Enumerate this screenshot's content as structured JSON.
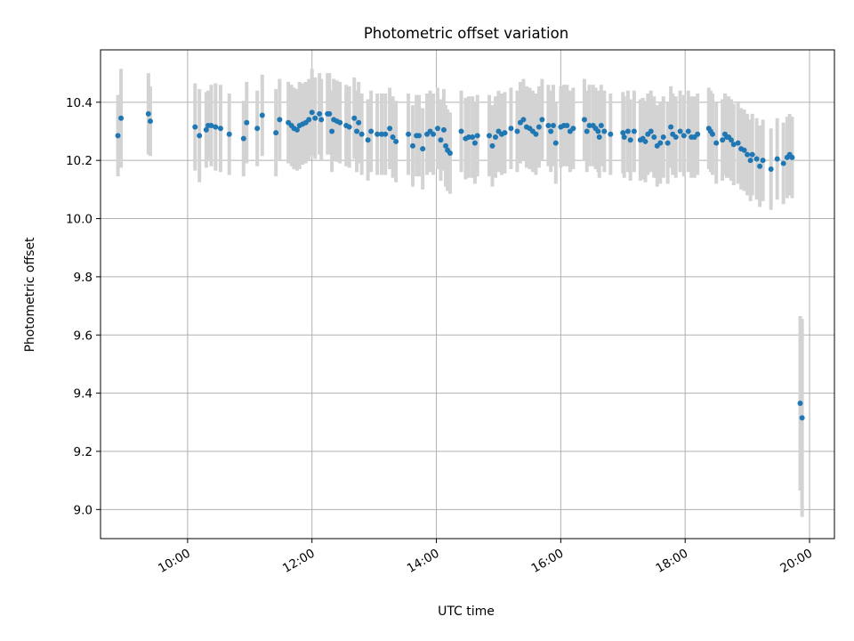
{
  "chart_data": {
    "type": "scatter",
    "title": "Photometric offset variation",
    "xlabel": "UTC time",
    "ylabel": "Photometric offset",
    "x_unit": "hours UTC",
    "xlim": [
      8.6,
      20.4
    ],
    "ylim": [
      8.9,
      10.58
    ],
    "x_ticks": [
      {
        "value": 10,
        "label": "10:00"
      },
      {
        "value": 12,
        "label": "12:00"
      },
      {
        "value": 14,
        "label": "14:00"
      },
      {
        "value": 16,
        "label": "16:00"
      },
      {
        "value": 18,
        "label": "18:00"
      },
      {
        "value": 20,
        "label": "20:00"
      }
    ],
    "y_ticks": [
      {
        "value": 9.0,
        "label": "9.0"
      },
      {
        "value": 9.2,
        "label": "9.2"
      },
      {
        "value": 9.4,
        "label": "9.4"
      },
      {
        "value": 9.6,
        "label": "9.6"
      },
      {
        "value": 9.8,
        "label": "9.8"
      },
      {
        "value": 10.0,
        "label": "10.0"
      },
      {
        "value": 10.2,
        "label": "10.2"
      },
      {
        "value": 10.4,
        "label": "10.4"
      }
    ],
    "grid": true,
    "colors": {
      "point": "#1f77b4",
      "errorbar": "#d3d3d3",
      "grid": "#b0b0b0"
    },
    "series": [
      {
        "points": [
          [
            8.88,
            10.285,
            0.14
          ],
          [
            8.93,
            10.345,
            0.17
          ],
          [
            9.37,
            10.36,
            0.14
          ],
          [
            9.4,
            10.335,
            0.12
          ],
          [
            10.12,
            10.315,
            0.15
          ],
          [
            10.19,
            10.285,
            0.16
          ],
          [
            10.3,
            10.305,
            0.13
          ],
          [
            10.33,
            10.32,
            0.12
          ],
          [
            10.38,
            10.32,
            0.14
          ],
          [
            10.45,
            10.315,
            0.15
          ],
          [
            10.53,
            10.31,
            0.15
          ],
          [
            10.67,
            10.29,
            0.14
          ],
          [
            10.9,
            10.275,
            0.13
          ],
          [
            10.95,
            10.33,
            0.14
          ],
          [
            11.12,
            10.31,
            0.13
          ],
          [
            11.2,
            10.355,
            0.14
          ],
          [
            11.42,
            10.295,
            0.15
          ],
          [
            11.48,
            10.34,
            0.14
          ],
          [
            11.62,
            10.33,
            0.14
          ],
          [
            11.67,
            10.32,
            0.14
          ],
          [
            11.71,
            10.31,
            0.14
          ],
          [
            11.76,
            10.305,
            0.14
          ],
          [
            11.8,
            10.32,
            0.15
          ],
          [
            11.85,
            10.325,
            0.14
          ],
          [
            11.9,
            10.33,
            0.14
          ],
          [
            11.95,
            10.34,
            0.14
          ],
          [
            12.0,
            10.365,
            0.15
          ],
          [
            12.05,
            10.345,
            0.14
          ],
          [
            12.12,
            10.36,
            0.14
          ],
          [
            12.15,
            10.34,
            0.14
          ],
          [
            12.25,
            10.36,
            0.14
          ],
          [
            12.28,
            10.36,
            0.14
          ],
          [
            12.32,
            10.3,
            0.14
          ],
          [
            12.35,
            10.34,
            0.14
          ],
          [
            12.4,
            10.335,
            0.14
          ],
          [
            12.45,
            10.33,
            0.14
          ],
          [
            12.55,
            10.32,
            0.14
          ],
          [
            12.6,
            10.315,
            0.14
          ],
          [
            12.68,
            10.345,
            0.14
          ],
          [
            12.72,
            10.3,
            0.14
          ],
          [
            12.75,
            10.33,
            0.14
          ],
          [
            12.8,
            10.29,
            0.14
          ],
          [
            12.9,
            10.27,
            0.14
          ],
          [
            12.95,
            10.3,
            0.14
          ],
          [
            13.05,
            10.29,
            0.14
          ],
          [
            13.12,
            10.29,
            0.14
          ],
          [
            13.18,
            10.29,
            0.14
          ],
          [
            13.25,
            10.31,
            0.14
          ],
          [
            13.3,
            10.28,
            0.14
          ],
          [
            13.35,
            10.265,
            0.14
          ],
          [
            13.55,
            10.29,
            0.14
          ],
          [
            13.62,
            10.25,
            0.14
          ],
          [
            13.68,
            10.285,
            0.14
          ],
          [
            13.72,
            10.285,
            0.14
          ],
          [
            13.78,
            10.24,
            0.14
          ],
          [
            13.85,
            10.29,
            0.14
          ],
          [
            13.9,
            10.3,
            0.14
          ],
          [
            13.95,
            10.29,
            0.14
          ],
          [
            14.02,
            10.31,
            0.14
          ],
          [
            14.07,
            10.27,
            0.14
          ],
          [
            14.12,
            10.305,
            0.14
          ],
          [
            14.15,
            10.25,
            0.14
          ],
          [
            14.18,
            10.235,
            0.14
          ],
          [
            14.22,
            10.225,
            0.14
          ],
          [
            14.4,
            10.3,
            0.14
          ],
          [
            14.47,
            10.275,
            0.14
          ],
          [
            14.52,
            10.28,
            0.14
          ],
          [
            14.58,
            10.28,
            0.14
          ],
          [
            14.62,
            10.26,
            0.14
          ],
          [
            14.66,
            10.285,
            0.14
          ],
          [
            14.85,
            10.285,
            0.14
          ],
          [
            14.9,
            10.25,
            0.14
          ],
          [
            14.95,
            10.28,
            0.14
          ],
          [
            15.0,
            10.3,
            0.14
          ],
          [
            15.05,
            10.29,
            0.14
          ],
          [
            15.1,
            10.295,
            0.14
          ],
          [
            15.2,
            10.31,
            0.14
          ],
          [
            15.3,
            10.3,
            0.14
          ],
          [
            15.35,
            10.33,
            0.14
          ],
          [
            15.4,
            10.34,
            0.14
          ],
          [
            15.45,
            10.315,
            0.14
          ],
          [
            15.5,
            10.31,
            0.14
          ],
          [
            15.55,
            10.3,
            0.14
          ],
          [
            15.6,
            10.29,
            0.14
          ],
          [
            15.65,
            10.315,
            0.14
          ],
          [
            15.7,
            10.34,
            0.14
          ],
          [
            15.8,
            10.32,
            0.14
          ],
          [
            15.84,
            10.3,
            0.14
          ],
          [
            15.88,
            10.32,
            0.14
          ],
          [
            15.92,
            10.26,
            0.14
          ],
          [
            16.0,
            10.315,
            0.14
          ],
          [
            16.05,
            10.32,
            0.14
          ],
          [
            16.1,
            10.32,
            0.14
          ],
          [
            16.15,
            10.3,
            0.14
          ],
          [
            16.2,
            10.31,
            0.14
          ],
          [
            16.38,
            10.34,
            0.14
          ],
          [
            16.42,
            10.3,
            0.14
          ],
          [
            16.46,
            10.32,
            0.14
          ],
          [
            16.52,
            10.32,
            0.14
          ],
          [
            16.56,
            10.31,
            0.14
          ],
          [
            16.6,
            10.3,
            0.14
          ],
          [
            16.62,
            10.28,
            0.14
          ],
          [
            16.65,
            10.32,
            0.14
          ],
          [
            16.7,
            10.3,
            0.14
          ],
          [
            16.8,
            10.29,
            0.14
          ],
          [
            17.0,
            10.295,
            0.14
          ],
          [
            17.02,
            10.28,
            0.14
          ],
          [
            17.08,
            10.3,
            0.14
          ],
          [
            17.12,
            10.27,
            0.14
          ],
          [
            17.18,
            10.3,
            0.14
          ],
          [
            17.28,
            10.27,
            0.14
          ],
          [
            17.32,
            10.275,
            0.14
          ],
          [
            17.36,
            10.265,
            0.14
          ],
          [
            17.4,
            10.29,
            0.14
          ],
          [
            17.45,
            10.3,
            0.14
          ],
          [
            17.5,
            10.28,
            0.14
          ],
          [
            17.55,
            10.25,
            0.14
          ],
          [
            17.6,
            10.26,
            0.14
          ],
          [
            17.65,
            10.28,
            0.14
          ],
          [
            17.72,
            10.26,
            0.14
          ],
          [
            17.77,
            10.315,
            0.14
          ],
          [
            17.8,
            10.29,
            0.14
          ],
          [
            17.85,
            10.28,
            0.14
          ],
          [
            17.92,
            10.3,
            0.14
          ],
          [
            17.98,
            10.285,
            0.14
          ],
          [
            18.05,
            10.3,
            0.14
          ],
          [
            18.1,
            10.28,
            0.14
          ],
          [
            18.15,
            10.28,
            0.14
          ],
          [
            18.2,
            10.29,
            0.14
          ],
          [
            18.38,
            10.31,
            0.14
          ],
          [
            18.41,
            10.3,
            0.14
          ],
          [
            18.44,
            10.29,
            0.14
          ],
          [
            18.5,
            10.26,
            0.14
          ],
          [
            18.6,
            10.27,
            0.14
          ],
          [
            18.64,
            10.29,
            0.14
          ],
          [
            18.67,
            10.28,
            0.14
          ],
          [
            18.7,
            10.28,
            0.14
          ],
          [
            18.74,
            10.27,
            0.14
          ],
          [
            18.78,
            10.255,
            0.14
          ],
          [
            18.85,
            10.26,
            0.14
          ],
          [
            18.9,
            10.24,
            0.14
          ],
          [
            18.95,
            10.235,
            0.14
          ],
          [
            19.0,
            10.22,
            0.14
          ],
          [
            19.05,
            10.2,
            0.14
          ],
          [
            19.08,
            10.22,
            0.14
          ],
          [
            19.15,
            10.205,
            0.14
          ],
          [
            19.2,
            10.18,
            0.14
          ],
          [
            19.25,
            10.2,
            0.14
          ],
          [
            19.38,
            10.17,
            0.14
          ],
          [
            19.48,
            10.205,
            0.14
          ],
          [
            19.58,
            10.19,
            0.14
          ],
          [
            19.64,
            10.21,
            0.14
          ],
          [
            19.68,
            10.22,
            0.14
          ],
          [
            19.72,
            10.21,
            0.14
          ],
          [
            19.85,
            9.365,
            0.3
          ],
          [
            19.88,
            9.315,
            0.34
          ]
        ]
      }
    ]
  }
}
